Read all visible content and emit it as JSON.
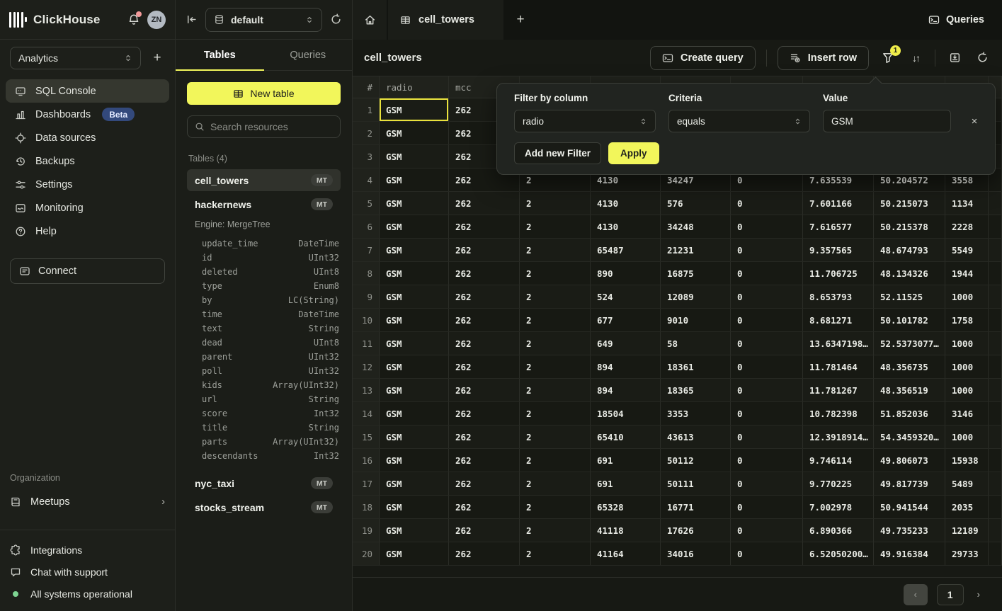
{
  "sidebar": {
    "brand": "ClickHouse",
    "avatar": "ZN",
    "workspace": "Analytics",
    "nav": [
      {
        "label": "SQL Console",
        "icon": "console",
        "active": true
      },
      {
        "label": "Dashboards",
        "icon": "dashboards",
        "badge": "Beta"
      },
      {
        "label": "Data sources",
        "icon": "datasources"
      },
      {
        "label": "Backups",
        "icon": "backups"
      },
      {
        "label": "Settings",
        "icon": "settings"
      },
      {
        "label": "Monitoring",
        "icon": "monitoring"
      },
      {
        "label": "Help",
        "icon": "help"
      }
    ],
    "connect_label": "Connect",
    "organization_label": "Organization",
    "meetups_label": "Meetups",
    "footer": [
      {
        "label": "Integrations",
        "icon": "puzzle"
      },
      {
        "label": "Chat with support",
        "icon": "chat"
      },
      {
        "label": "All systems operational",
        "icon": "status-dot"
      }
    ]
  },
  "explorer": {
    "database": "default",
    "tabs": [
      "Tables",
      "Queries"
    ],
    "new_table_label": "New table",
    "search_placeholder": "Search resources",
    "section_label": "Tables (4)",
    "tables": [
      {
        "name": "cell_towers",
        "badge": "MT",
        "selected": true
      },
      {
        "name": "hackernews",
        "badge": "MT",
        "engine": "Engine: MergeTree",
        "columns": [
          {
            "name": "update_time",
            "type": "DateTime"
          },
          {
            "name": "id",
            "type": "UInt32"
          },
          {
            "name": "deleted",
            "type": "UInt8"
          },
          {
            "name": "type",
            "type": "Enum8"
          },
          {
            "name": "by",
            "type": "LC(String)"
          },
          {
            "name": "time",
            "type": "DateTime"
          },
          {
            "name": "text",
            "type": "String"
          },
          {
            "name": "dead",
            "type": "UInt8"
          },
          {
            "name": "parent",
            "type": "UInt32"
          },
          {
            "name": "poll",
            "type": "UInt32"
          },
          {
            "name": "kids",
            "type": "Array(UInt32)"
          },
          {
            "name": "url",
            "type": "String"
          },
          {
            "name": "score",
            "type": "Int32"
          },
          {
            "name": "title",
            "type": "String"
          },
          {
            "name": "parts",
            "type": "Array(UInt32)"
          },
          {
            "name": "descendants",
            "type": "Int32"
          }
        ]
      },
      {
        "name": "nyc_taxi",
        "badge": "MT"
      },
      {
        "name": "stocks_stream",
        "badge": "MT"
      }
    ]
  },
  "main": {
    "tab_label": "cell_towers",
    "queries_label": "Queries",
    "title": "cell_towers",
    "create_query_label": "Create query",
    "insert_row_label": "Insert row",
    "filter_badge": "1",
    "sort_glyph": "↓↑",
    "pagination": {
      "prev": "‹",
      "page": "1",
      "next": "›"
    }
  },
  "filter_popup": {
    "column_label": "Filter by column",
    "column_value": "radio",
    "criteria_label": "Criteria",
    "criteria_value": "equals",
    "value_label": "Value",
    "value": "GSM",
    "close": "×",
    "add_button": "Add new Filter",
    "apply_button": "Apply"
  },
  "table": {
    "headers": [
      "#",
      "radio",
      "mcc",
      "",
      "",
      "",
      "",
      "",
      "",
      "",
      ""
    ],
    "rows": [
      {
        "n": "1",
        "selected": true,
        "cells": [
          "GSM",
          "262",
          "",
          "",
          "",
          "",
          "",
          "",
          "",
          ""
        ]
      },
      {
        "n": "2",
        "cells": [
          "GSM",
          "262",
          "",
          "",
          "",
          "",
          "",
          "",
          "",
          ""
        ]
      },
      {
        "n": "3",
        "cells": [
          "GSM",
          "262",
          "",
          "",
          "",
          "",
          "",
          "",
          "",
          ""
        ]
      },
      {
        "n": "4",
        "cells": [
          "GSM",
          "262",
          "2",
          "4130",
          "34247",
          "0",
          "7.635539",
          "50.204572",
          "3558",
          ""
        ]
      },
      {
        "n": "5",
        "cells": [
          "GSM",
          "262",
          "2",
          "4130",
          "576",
          "0",
          "7.601166",
          "50.215073",
          "1134",
          ""
        ]
      },
      {
        "n": "6",
        "cells": [
          "GSM",
          "262",
          "2",
          "4130",
          "34248",
          "0",
          "7.616577",
          "50.215378",
          "2228",
          ""
        ]
      },
      {
        "n": "7",
        "cells": [
          "GSM",
          "262",
          "2",
          "65487",
          "21231",
          "0",
          "9.357565",
          "48.674793",
          "5549",
          ""
        ]
      },
      {
        "n": "8",
        "cells": [
          "GSM",
          "262",
          "2",
          "890",
          "16875",
          "0",
          "11.706725",
          "48.134326",
          "1944",
          ""
        ]
      },
      {
        "n": "9",
        "cells": [
          "GSM",
          "262",
          "2",
          "524",
          "12089",
          "0",
          "8.653793",
          "52.11525",
          "1000",
          ""
        ]
      },
      {
        "n": "10",
        "cells": [
          "GSM",
          "262",
          "2",
          "677",
          "9010",
          "0",
          "8.681271",
          "50.101782",
          "1758",
          ""
        ]
      },
      {
        "n": "11",
        "cells": [
          "GSM",
          "262",
          "2",
          "649",
          "58",
          "0",
          "13.6347198…",
          "52.5373077…",
          "1000",
          ""
        ]
      },
      {
        "n": "12",
        "cells": [
          "GSM",
          "262",
          "2",
          "894",
          "18361",
          "0",
          "11.781464",
          "48.356735",
          "1000",
          ""
        ]
      },
      {
        "n": "13",
        "cells": [
          "GSM",
          "262",
          "2",
          "894",
          "18365",
          "0",
          "11.781267",
          "48.356519",
          "1000",
          ""
        ]
      },
      {
        "n": "14",
        "cells": [
          "GSM",
          "262",
          "2",
          "18504",
          "3353",
          "0",
          "10.782398",
          "51.852036",
          "3146",
          ""
        ]
      },
      {
        "n": "15",
        "cells": [
          "GSM",
          "262",
          "2",
          "65410",
          "43613",
          "0",
          "12.3918914…",
          "54.3459320…",
          "1000",
          ""
        ]
      },
      {
        "n": "16",
        "cells": [
          "GSM",
          "262",
          "2",
          "691",
          "50112",
          "0",
          "9.746114",
          "49.806073",
          "15938",
          ""
        ]
      },
      {
        "n": "17",
        "cells": [
          "GSM",
          "262",
          "2",
          "691",
          "50111",
          "0",
          "9.770225",
          "49.817739",
          "5489",
          ""
        ]
      },
      {
        "n": "18",
        "cells": [
          "GSM",
          "262",
          "2",
          "65328",
          "16771",
          "0",
          "7.002978",
          "50.941544",
          "2035",
          ""
        ]
      },
      {
        "n": "19",
        "cells": [
          "GSM",
          "262",
          "2",
          "41118",
          "17626",
          "0",
          "6.890366",
          "49.735233",
          "12189",
          ""
        ]
      },
      {
        "n": "20",
        "cells": [
          "GSM",
          "262",
          "2",
          "41164",
          "34016",
          "0",
          "6.52050200…",
          "49.916384",
          "29733",
          ""
        ]
      }
    ]
  }
}
